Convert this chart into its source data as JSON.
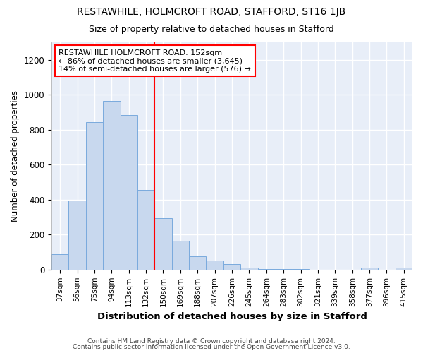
{
  "title1": "RESTAWHILE, HOLMCROFT ROAD, STAFFORD, ST16 1JB",
  "title2": "Size of property relative to detached houses in Stafford",
  "xlabel": "Distribution of detached houses by size in Stafford",
  "ylabel": "Number of detached properties",
  "categories": [
    "37sqm",
    "56sqm",
    "75sqm",
    "94sqm",
    "113sqm",
    "132sqm",
    "150sqm",
    "169sqm",
    "188sqm",
    "207sqm",
    "226sqm",
    "245sqm",
    "264sqm",
    "283sqm",
    "302sqm",
    "321sqm",
    "339sqm",
    "358sqm",
    "377sqm",
    "396sqm",
    "415sqm"
  ],
  "values": [
    90,
    395,
    845,
    965,
    885,
    455,
    295,
    165,
    75,
    50,
    30,
    10,
    5,
    2,
    2,
    0,
    0,
    0,
    10,
    0,
    10
  ],
  "bar_color": "#c8d8ee",
  "bar_edge_color": "#7aaadd",
  "vline_x": 6,
  "vline_color": "red",
  "annotation_text": "RESTAWHILE HOLMCROFT ROAD: 152sqm\n← 86% of detached houses are smaller (3,645)\n14% of semi-detached houses are larger (576) →",
  "annotation_box_color": "white",
  "annotation_box_edge": "red",
  "footer1": "Contains HM Land Registry data © Crown copyright and database right 2024.",
  "footer2": "Contains public sector information licensed under the Open Government Licence v3.0.",
  "ylim": [
    0,
    1300
  ],
  "yticks": [
    0,
    200,
    400,
    600,
    800,
    1000,
    1200
  ],
  "fig_bg": "#ffffff",
  "ax_bg": "#e8eef8",
  "grid_color": "#ffffff",
  "title1_fontsize": 10,
  "title2_fontsize": 9
}
